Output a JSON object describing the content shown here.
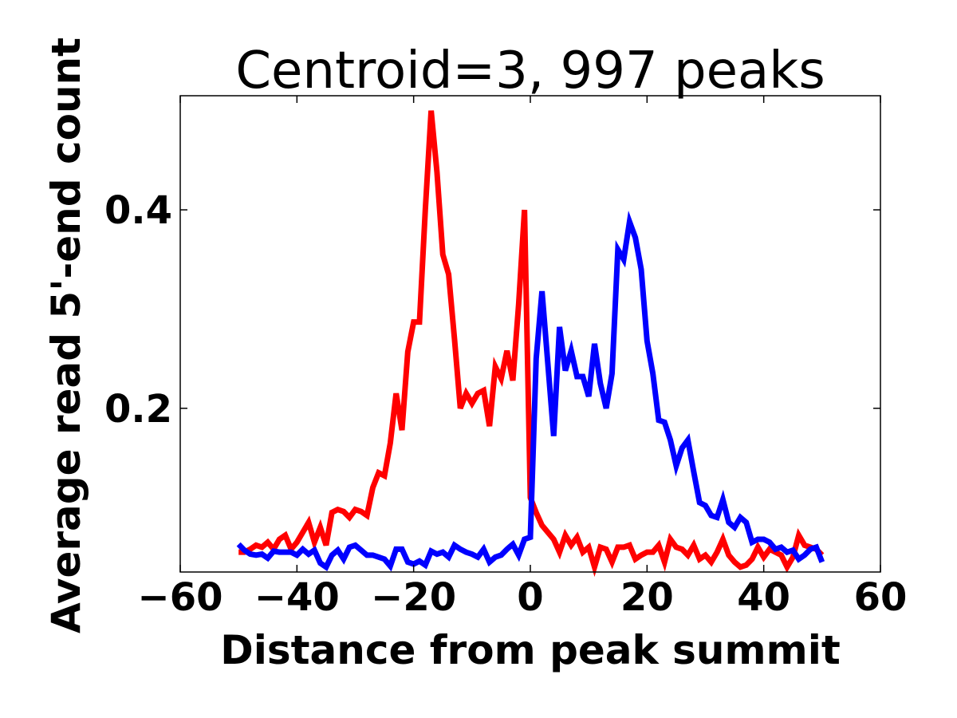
{
  "chart_data": {
    "type": "line",
    "title": "Centroid=3, 997 peaks",
    "xlabel": "Distance from peak summit",
    "ylabel": "Average read 5'-end count",
    "xlim": [
      -60,
      60
    ],
    "ylim": [
      0.035,
      0.515
    ],
    "xticks": [
      -60,
      -40,
      -20,
      0,
      20,
      40,
      60
    ],
    "xtick_labels": [
      "−60",
      "−40",
      "−20",
      "0",
      "20",
      "40",
      "60"
    ],
    "yticks": [
      0.2,
      0.4
    ],
    "ytick_labels": [
      "0.2",
      "0.4"
    ],
    "grid": false,
    "x": [
      -50,
      -49,
      -48,
      -47,
      -46,
      -45,
      -44,
      -43,
      -42,
      -41,
      -40,
      -39,
      -38,
      -37,
      -36,
      -35,
      -34,
      -33,
      -32,
      -31,
      -30,
      -29,
      -28,
      -27,
      -26,
      -25,
      -24,
      -23,
      -22,
      -21,
      -20,
      -19,
      -18,
      -17,
      -16,
      -15,
      -14,
      -13,
      -12,
      -11,
      -10,
      -9,
      -8,
      -7,
      -6,
      -5,
      -4,
      -3,
      -2,
      -1,
      0,
      1,
      2,
      3,
      4,
      5,
      6,
      7,
      8,
      9,
      10,
      11,
      12,
      13,
      14,
      15,
      16,
      17,
      18,
      19,
      20,
      21,
      22,
      23,
      24,
      25,
      26,
      27,
      28,
      29,
      30,
      31,
      32,
      33,
      34,
      35,
      36,
      37,
      38,
      39,
      40,
      41,
      42,
      43,
      44,
      45,
      46,
      47,
      48,
      49,
      50
    ],
    "series": [
      {
        "color": "#ff0000",
        "values": [
          0.055,
          0.055,
          0.058,
          0.062,
          0.06,
          0.065,
          0.058,
          0.068,
          0.072,
          0.058,
          0.065,
          0.075,
          0.085,
          0.065,
          0.08,
          0.062,
          0.095,
          0.098,
          0.096,
          0.09,
          0.098,
          0.096,
          0.092,
          0.12,
          0.135,
          0.132,
          0.165,
          0.215,
          0.178,
          0.257,
          0.287,
          0.287,
          0.4,
          0.5,
          0.438,
          0.355,
          0.335,
          0.27,
          0.2,
          0.215,
          0.205,
          0.215,
          0.218,
          0.182,
          0.242,
          0.23,
          0.258,
          0.228,
          0.305,
          0.4,
          0.11,
          0.095,
          0.082,
          0.075,
          0.068,
          0.055,
          0.072,
          0.062,
          0.07,
          0.055,
          0.06,
          0.04,
          0.06,
          0.058,
          0.045,
          0.06,
          0.06,
          0.062,
          0.048,
          0.052,
          0.055,
          0.055,
          0.062,
          0.045,
          0.068,
          0.06,
          0.058,
          0.052,
          0.062,
          0.048,
          0.052,
          0.045,
          0.055,
          0.068,
          0.052,
          0.045,
          0.04,
          0.042,
          0.048,
          0.06,
          0.05,
          0.058,
          0.055,
          0.052,
          0.04,
          0.05,
          0.072,
          0.062,
          0.06,
          0.058,
          0.052
        ]
      },
      {
        "color": "#0000ff",
        "values": [
          0.063,
          0.057,
          0.053,
          0.052,
          0.053,
          0.049,
          0.056,
          0.055,
          0.055,
          0.055,
          0.052,
          0.058,
          0.053,
          0.057,
          0.044,
          0.04,
          0.052,
          0.057,
          0.048,
          0.06,
          0.062,
          0.057,
          0.052,
          0.052,
          0.05,
          0.048,
          0.041,
          0.058,
          0.058,
          0.045,
          0.043,
          0.046,
          0.042,
          0.056,
          0.053,
          0.055,
          0.05,
          0.062,
          0.058,
          0.055,
          0.053,
          0.05,
          0.058,
          0.045,
          0.05,
          0.052,
          0.058,
          0.063,
          0.052,
          0.068,
          0.07,
          0.25,
          0.318,
          0.245,
          0.172,
          0.282,
          0.238,
          0.258,
          0.232,
          0.232,
          0.212,
          0.265,
          0.225,
          0.2,
          0.235,
          0.36,
          0.35,
          0.388,
          0.372,
          0.34,
          0.268,
          0.235,
          0.188,
          0.186,
          0.168,
          0.142,
          0.16,
          0.168,
          0.136,
          0.105,
          0.102,
          0.092,
          0.09,
          0.108,
          0.085,
          0.08,
          0.09,
          0.085,
          0.065,
          0.068,
          0.068,
          0.065,
          0.058,
          0.06,
          0.055,
          0.057,
          0.048,
          0.052,
          0.058,
          0.06,
          0.045
        ]
      }
    ]
  }
}
